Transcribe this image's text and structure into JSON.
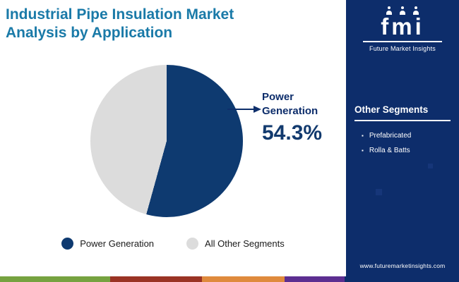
{
  "header": {
    "title": "Industrial Pipe Insulation Market\nAnalysis by Application",
    "title_color": "#1a7aa8"
  },
  "chart_data": {
    "type": "pie",
    "title": "Industrial Pipe Insulation Market Analysis by Application",
    "segments": [
      {
        "label": "Power Generation",
        "value": 54.3,
        "color": "#0e3a70"
      },
      {
        "label": "All Other Segments",
        "value": 45.7,
        "color": "#dcdcdc"
      }
    ],
    "start_angle_deg": 0,
    "direction": "clockwise",
    "legend_position": "bottom"
  },
  "callout": {
    "label": "Power Generation",
    "value": "54.3%",
    "color": "#0d2d6b"
  },
  "sidebar": {
    "logo_text": "fmi",
    "brand_name": "Future Market Insights",
    "section_title": "Other Segments",
    "items": [
      "Prefabricated",
      "Rolla & Batts"
    ],
    "website": "www.futuremarketinsights.com",
    "bg_color": "#0d2d6b"
  },
  "footer_stripe": {
    "segments": [
      {
        "color": "#76a240",
        "width_pct": 24
      },
      {
        "color": "#9a3324",
        "width_pct": 20
      },
      {
        "color": "#df8a3d",
        "width_pct": 18
      },
      {
        "color": "#5c2e91",
        "width_pct": 13
      },
      {
        "color": "#0d2d6b",
        "width_pct": 25
      }
    ]
  }
}
